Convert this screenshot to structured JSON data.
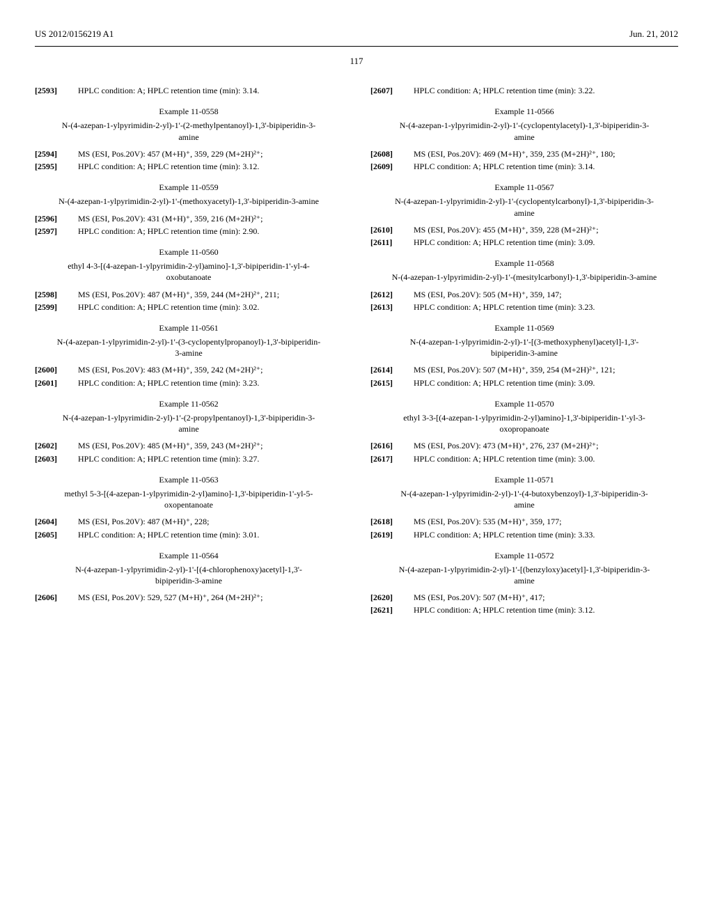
{
  "header": {
    "left": "US 2012/0156219 A1",
    "right": "Jun. 21, 2012",
    "pagenum": "117"
  },
  "left": [
    {
      "type": "entry",
      "num": "[2593]",
      "txt": "HPLC condition: A; HPLC retention time (min): 3.14."
    },
    {
      "type": "title",
      "txt": "Example 11-0558"
    },
    {
      "type": "sub",
      "txt": "N-(4-azepan-1-ylpyrimidin-2-yl)-1'-(2-methylpentanoyl)-1,3'-bipiperidin-3-amine"
    },
    {
      "type": "entry",
      "num": "[2594]",
      "txt": "MS (ESI, Pos.20V): 457 (M+H)⁺, 359, 229 (M+2H)²⁺;"
    },
    {
      "type": "entry",
      "num": "[2595]",
      "txt": "HPLC condition: A; HPLC retention time (min): 3.12."
    },
    {
      "type": "title",
      "txt": "Example 11-0559"
    },
    {
      "type": "sub",
      "txt": "N-(4-azepan-1-ylpyrimidin-2-yl)-1'-(methoxyacetyl)-1,3'-bipiperidin-3-amine"
    },
    {
      "type": "entry",
      "num": "[2596]",
      "txt": "MS (ESI, Pos.20V): 431 (M+H)⁺, 359, 216 (M+2H)²⁺;"
    },
    {
      "type": "entry",
      "num": "[2597]",
      "txt": "HPLC condition: A; HPLC retention time (min): 2.90."
    },
    {
      "type": "title",
      "txt": "Example 11-0560"
    },
    {
      "type": "sub",
      "txt": "ethyl 4-3-[(4-azepan-1-ylpyrimidin-2-yl)amino]-1,3'-bipiperidin-1'-yl-4-oxobutanoate"
    },
    {
      "type": "entry",
      "num": "[2598]",
      "txt": "MS (ESI, Pos.20V): 487 (M+H)⁺, 359, 244 (M+2H)²⁺, 211;"
    },
    {
      "type": "entry",
      "num": "[2599]",
      "txt": "HPLC condition: A; HPLC retention time (min): 3.02."
    },
    {
      "type": "title",
      "txt": "Example 11-0561"
    },
    {
      "type": "sub",
      "txt": "N-(4-azepan-1-ylpyrimidin-2-yl)-1'-(3-cyclopentylpropanoyl)-1,3'-bipiperidin-3-amine"
    },
    {
      "type": "entry",
      "num": "[2600]",
      "txt": "MS (ESI, Pos.20V): 483 (M+H)⁺, 359, 242 (M+2H)²⁺;"
    },
    {
      "type": "entry",
      "num": "[2601]",
      "txt": "HPLC condition: A; HPLC retention time (min): 3.23."
    },
    {
      "type": "title",
      "txt": "Example 11-0562"
    },
    {
      "type": "sub",
      "txt": "N-(4-azepan-1-ylpyrimidin-2-yl)-1'-(2-propylpentanoyl)-1,3'-bipiperidin-3-amine"
    },
    {
      "type": "entry",
      "num": "[2602]",
      "txt": "MS (ESI, Pos.20V): 485 (M+H)⁺, 359, 243 (M+2H)²⁺;"
    },
    {
      "type": "entry",
      "num": "[2603]",
      "txt": "HPLC condition: A; HPLC retention time (min): 3.27."
    },
    {
      "type": "title",
      "txt": "Example 11-0563"
    },
    {
      "type": "sub",
      "txt": "methyl 5-3-[(4-azepan-1-ylpyrimidin-2-yl)amino]-1,3'-bipiperidin-1'-yl-5-oxopentanoate"
    },
    {
      "type": "entry",
      "num": "[2604]",
      "txt": "MS (ESI, Pos.20V): 487 (M+H)⁺, 228;"
    },
    {
      "type": "entry",
      "num": "[2605]",
      "txt": "HPLC condition: A; HPLC retention time (min): 3.01."
    },
    {
      "type": "title",
      "txt": "Example 11-0564"
    },
    {
      "type": "sub",
      "txt": "N-(4-azepan-1-ylpyrimidin-2-yl)-1'-[(4-chlorophenoxy)acetyl]-1,3'-bipiperidin-3-amine"
    },
    {
      "type": "entry",
      "num": "[2606]",
      "txt": "MS (ESI, Pos.20V): 529, 527 (M+H)⁺, 264 (M+2H)²⁺;"
    }
  ],
  "right": [
    {
      "type": "entry",
      "num": "[2607]",
      "txt": "HPLC condition: A; HPLC retention time (min): 3.22."
    },
    {
      "type": "title",
      "txt": "Example 11-0566"
    },
    {
      "type": "sub",
      "txt": "N-(4-azepan-1-ylpyrimidin-2-yl)-1'-(cyclopentylacetyl)-1,3'-bipiperidin-3-amine"
    },
    {
      "type": "entry",
      "num": "[2608]",
      "txt": "MS (ESI, Pos.20V): 469 (M+H)⁺, 359, 235 (M+2H)²⁺, 180;"
    },
    {
      "type": "entry",
      "num": "[2609]",
      "txt": "HPLC condition: A; HPLC retention time (min): 3.14."
    },
    {
      "type": "title",
      "txt": "Example 11-0567"
    },
    {
      "type": "sub",
      "txt": "N-(4-azepan-1-ylpyrimidin-2-yl)-1'-(cyclopentylcarbonyl)-1,3'-bipiperidin-3-amine"
    },
    {
      "type": "entry",
      "num": "[2610]",
      "txt": "MS (ESI, Pos.20V): 455 (M+H)⁺, 359, 228 (M+2H)²⁺;"
    },
    {
      "type": "entry",
      "num": "[2611]",
      "txt": "HPLC condition: A; HPLC retention time (min): 3.09."
    },
    {
      "type": "title",
      "txt": "Example 11-0568"
    },
    {
      "type": "sub",
      "txt": "N-(4-azepan-1-ylpyrimidin-2-yl)-1'-(mesitylcarbonyl)-1,3'-bipiperidin-3-amine"
    },
    {
      "type": "entry",
      "num": "[2612]",
      "txt": "MS (ESI, Pos.20V): 505 (M+H)⁺, 359, 147;"
    },
    {
      "type": "entry",
      "num": "[2613]",
      "txt": "HPLC condition: A; HPLC retention time (min): 3.23."
    },
    {
      "type": "title",
      "txt": "Example 11-0569"
    },
    {
      "type": "sub",
      "txt": "N-(4-azepan-1-ylpyrimidin-2-yl)-1'-[(3-methoxyphenyl)acetyl]-1,3'-bipiperidin-3-amine"
    },
    {
      "type": "entry",
      "num": "[2614]",
      "txt": "MS (ESI, Pos.20V): 507 (M+H)⁺, 359, 254 (M+2H)²⁺, 121;"
    },
    {
      "type": "entry",
      "num": "[2615]",
      "txt": "HPLC condition: A; HPLC retention time (min): 3.09."
    },
    {
      "type": "title",
      "txt": "Example 11-0570"
    },
    {
      "type": "sub",
      "txt": "ethyl 3-3-[(4-azepan-1-ylpyrimidin-2-yl)amino]-1,3'-bipiperidin-1'-yl-3-oxopropanoate"
    },
    {
      "type": "entry",
      "num": "[2616]",
      "txt": "MS (ESI, Pos.20V): 473 (M+H)⁺, 276, 237 (M+2H)²⁺;"
    },
    {
      "type": "entry",
      "num": "[2617]",
      "txt": "HPLC condition: A; HPLC retention time (min): 3.00."
    },
    {
      "type": "title",
      "txt": "Example 11-0571"
    },
    {
      "type": "sub",
      "txt": "N-(4-azepan-1-ylpyrimidin-2-yl)-1'-(4-butoxybenzoyl)-1,3'-bipiperidin-3-amine"
    },
    {
      "type": "entry",
      "num": "[2618]",
      "txt": "MS (ESI, Pos.20V): 535 (M+H)⁺, 359, 177;"
    },
    {
      "type": "entry",
      "num": "[2619]",
      "txt": "HPLC condition: A; HPLC retention time (min): 3.33."
    },
    {
      "type": "title",
      "txt": "Example 11-0572"
    },
    {
      "type": "sub",
      "txt": "N-(4-azepan-1-ylpyrimidin-2-yl)-1'-[(benzyloxy)acetyl]-1,3'-bipiperidin-3-amine"
    },
    {
      "type": "entry",
      "num": "[2620]",
      "txt": "MS (ESI, Pos.20V): 507 (M+H)⁺, 417;"
    },
    {
      "type": "entry",
      "num": "[2621]",
      "txt": "HPLC condition: A; HPLC retention time (min): 3.12."
    }
  ]
}
